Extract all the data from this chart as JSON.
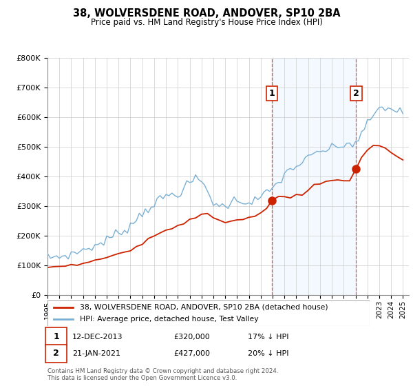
{
  "title": "38, WOLVERSDENE ROAD, ANDOVER, SP10 2BA",
  "subtitle": "Price paid vs. HM Land Registry's House Price Index (HPI)",
  "ylim": [
    0,
    800000
  ],
  "yticks": [
    0,
    100000,
    200000,
    300000,
    400000,
    500000,
    600000,
    700000,
    800000
  ],
  "legend_line1": "38, WOLVERSDENE ROAD, ANDOVER, SP10 2BA (detached house)",
  "legend_line2": "HPI: Average price, detached house, Test Valley",
  "annotation1_date": "12-DEC-2013",
  "annotation1_price": "£320,000",
  "annotation1_hpi": "17% ↓ HPI",
  "annotation2_date": "21-JAN-2021",
  "annotation2_price": "£427,000",
  "annotation2_hpi": "20% ↓ HPI",
  "footer": "Contains HM Land Registry data © Crown copyright and database right 2024.\nThis data is licensed under the Open Government Licence v3.0.",
  "line_color_red": "#cc2200",
  "line_color_blue": "#7ab0d4",
  "shaded_region_color": "#ddeeff",
  "marker1_x": 2013.95,
  "marker2_x": 2021.05,
  "marker1_y": 320000,
  "marker2_y": 427000,
  "xmin": 1995,
  "xmax": 2025.5,
  "shade_x1": 2013.95,
  "shade_x2": 2021.05,
  "hpi_x": [
    1995.0,
    1995.25,
    1995.5,
    1995.75,
    1996.0,
    1996.25,
    1996.5,
    1996.75,
    1997.0,
    1997.25,
    1997.5,
    1997.75,
    1998.0,
    1998.25,
    1998.5,
    1998.75,
    1999.0,
    1999.25,
    1999.5,
    1999.75,
    2000.0,
    2000.25,
    2000.5,
    2000.75,
    2001.0,
    2001.25,
    2001.5,
    2001.75,
    2002.0,
    2002.25,
    2002.5,
    2002.75,
    2003.0,
    2003.25,
    2003.5,
    2003.75,
    2004.0,
    2004.25,
    2004.5,
    2004.75,
    2005.0,
    2005.25,
    2005.5,
    2005.75,
    2006.0,
    2006.25,
    2006.5,
    2006.75,
    2007.0,
    2007.25,
    2007.5,
    2007.75,
    2008.0,
    2008.25,
    2008.5,
    2008.75,
    2009.0,
    2009.25,
    2009.5,
    2009.75,
    2010.0,
    2010.25,
    2010.5,
    2010.75,
    2011.0,
    2011.25,
    2011.5,
    2011.75,
    2012.0,
    2012.25,
    2012.5,
    2012.75,
    2013.0,
    2013.25,
    2013.5,
    2013.75,
    2014.0,
    2014.25,
    2014.5,
    2014.75,
    2015.0,
    2015.25,
    2015.5,
    2015.75,
    2016.0,
    2016.25,
    2016.5,
    2016.75,
    2017.0,
    2017.25,
    2017.5,
    2017.75,
    2018.0,
    2018.25,
    2018.5,
    2018.75,
    2019.0,
    2019.25,
    2019.5,
    2019.75,
    2020.0,
    2020.25,
    2020.5,
    2020.75,
    2021.0,
    2021.25,
    2021.5,
    2021.75,
    2022.0,
    2022.25,
    2022.5,
    2022.75,
    2023.0,
    2023.25,
    2023.5,
    2023.75,
    2024.0,
    2024.25,
    2024.5,
    2024.75,
    2025.0
  ],
  "hpi_y": [
    128000,
    128500,
    129000,
    130000,
    131000,
    132000,
    134000,
    136000,
    138000,
    141000,
    145000,
    149000,
    153000,
    157000,
    160000,
    163000,
    166000,
    170000,
    175000,
    181000,
    187000,
    193000,
    199000,
    205000,
    210000,
    216000,
    222000,
    228000,
    235000,
    245000,
    257000,
    268000,
    278000,
    287000,
    295000,
    302000,
    308000,
    315000,
    322000,
    328000,
    333000,
    337000,
    340000,
    342000,
    344000,
    350000,
    358000,
    368000,
    378000,
    387000,
    391000,
    388000,
    382000,
    370000,
    352000,
    332000,
    314000,
    305000,
    300000,
    299000,
    303000,
    308000,
    314000,
    318000,
    320000,
    320000,
    318000,
    316000,
    314000,
    316000,
    320000,
    325000,
    330000,
    336000,
    344000,
    352000,
    360000,
    370000,
    382000,
    394000,
    406000,
    416000,
    424000,
    430000,
    436000,
    442000,
    448000,
    454000,
    460000,
    468000,
    475000,
    480000,
    484000,
    487000,
    490000,
    492000,
    494000,
    497000,
    500000,
    503000,
    506000,
    509000,
    510000,
    511000,
    515000,
    525000,
    540000,
    558000,
    578000,
    595000,
    608000,
    618000,
    625000,
    630000,
    632000,
    630000,
    628000,
    625000,
    622000,
    618000,
    615000
  ],
  "red_x": [
    1995.0,
    1995.5,
    1996.0,
    1996.5,
    1997.0,
    1997.5,
    1998.0,
    1998.5,
    1999.0,
    1999.5,
    2000.0,
    2000.5,
    2001.0,
    2001.5,
    2002.0,
    2002.5,
    2003.0,
    2003.5,
    2004.0,
    2004.5,
    2005.0,
    2005.5,
    2006.0,
    2006.5,
    2007.0,
    2007.5,
    2008.0,
    2008.5,
    2009.0,
    2009.5,
    2010.0,
    2010.5,
    2011.0,
    2011.5,
    2012.0,
    2012.5,
    2013.0,
    2013.5,
    2013.95,
    2014.5,
    2015.0,
    2015.5,
    2016.0,
    2016.5,
    2017.0,
    2017.5,
    2018.0,
    2018.5,
    2019.0,
    2019.5,
    2020.0,
    2020.5,
    2021.05,
    2021.5,
    2022.0,
    2022.5,
    2023.0,
    2023.5,
    2024.0,
    2024.5,
    2025.0
  ],
  "red_y": [
    95000,
    95000,
    98000,
    100000,
    103000,
    108000,
    112000,
    116000,
    120000,
    124000,
    128000,
    133000,
    138000,
    144000,
    152000,
    162000,
    172000,
    185000,
    197000,
    210000,
    220000,
    228000,
    235000,
    245000,
    255000,
    268000,
    278000,
    270000,
    255000,
    248000,
    252000,
    256000,
    260000,
    262000,
    262000,
    268000,
    278000,
    295000,
    320000,
    325000,
    330000,
    332000,
    335000,
    340000,
    355000,
    368000,
    378000,
    385000,
    388000,
    382000,
    378000,
    385000,
    427000,
    470000,
    490000,
    500000,
    505000,
    495000,
    480000,
    465000,
    455000
  ]
}
